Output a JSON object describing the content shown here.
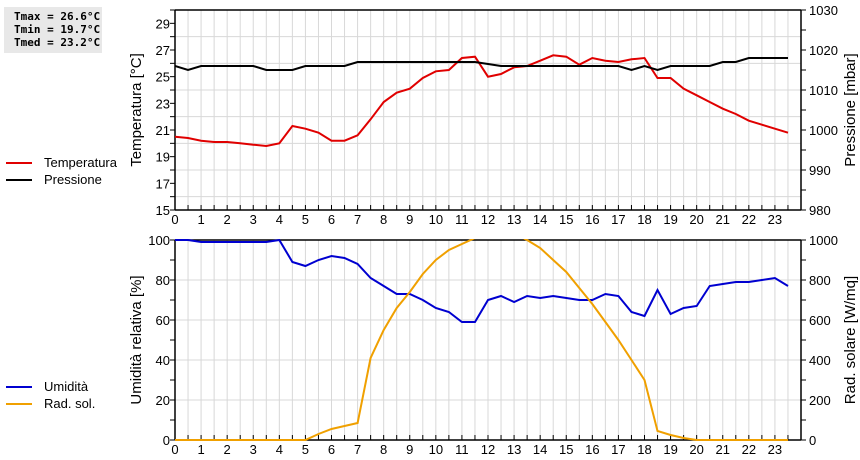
{
  "stats": {
    "tmax": "Tmax = 26.6°C",
    "tmin": "Tmin = 19.7°C",
    "tmed": "Tmed = 23.2°C"
  },
  "legend_top": [
    {
      "label": "Temperatura",
      "color": "#e00000"
    },
    {
      "label": "Pressione",
      "color": "#000000"
    }
  ],
  "legend_bottom": [
    {
      "label": "Umidità",
      "color": "#0000d0"
    },
    {
      "label": "Rad. sol.",
      "color": "#f0a000"
    }
  ],
  "chart_data": [
    {
      "type": "line",
      "title": "",
      "xlabel": "",
      "ylabel": "Temperatura [°C]",
      "ylabel_right": "Pressione [mbar]",
      "xlim": [
        0,
        24
      ],
      "ylim": [
        15,
        30
      ],
      "ylim_right": [
        980,
        1030
      ],
      "x_ticks": [
        "0",
        "1",
        "2",
        "3",
        "4",
        "5",
        "6",
        "7",
        "8",
        "9",
        "10",
        "11",
        "12",
        "13",
        "14",
        "15",
        "16",
        "17",
        "18",
        "19",
        "20",
        "21",
        "22",
        "23"
      ],
      "y_ticks": [
        "15",
        "17",
        "19",
        "21",
        "23",
        "25",
        "27",
        "29"
      ],
      "y_ticks_right": [
        "980",
        "990",
        "1000",
        "1010",
        "1020",
        "1030"
      ],
      "grid": true,
      "legend_position": "left",
      "x": [
        0,
        0.5,
        1,
        1.5,
        2,
        2.5,
        3,
        3.5,
        4,
        4.5,
        5,
        5.5,
        6,
        6.5,
        7,
        7.5,
        8,
        8.5,
        9,
        9.5,
        10,
        10.5,
        11,
        11.5,
        12,
        12.5,
        13,
        13.5,
        14,
        14.5,
        15,
        15.5,
        16,
        16.5,
        17,
        17.5,
        18,
        18.5,
        19,
        19.5,
        20,
        20.5,
        21,
        21.5,
        22,
        22.5,
        23,
        23.5
      ],
      "series": [
        {
          "name": "Temperatura",
          "axis": "left",
          "color": "#e00000",
          "values": [
            20.5,
            20.4,
            20.2,
            20.1,
            20.1,
            20.0,
            19.9,
            19.8,
            20.0,
            21.3,
            21.1,
            20.8,
            20.2,
            20.2,
            20.6,
            21.8,
            23.1,
            23.8,
            24.1,
            24.9,
            25.4,
            25.5,
            26.4,
            26.5,
            25.0,
            25.2,
            25.7,
            25.8,
            26.2,
            26.6,
            26.5,
            25.9,
            26.4,
            26.2,
            26.1,
            26.3,
            26.4,
            24.9,
            24.9,
            24.1,
            23.6,
            23.1,
            22.6,
            22.2,
            21.7,
            21.4,
            21.1,
            20.8
          ]
        },
        {
          "name": "Pressione",
          "axis": "right",
          "color": "#000000",
          "values": [
            1016,
            1015,
            1016,
            1016,
            1016,
            1016,
            1016,
            1015,
            1015,
            1015,
            1016,
            1016,
            1016,
            1016,
            1017,
            1017,
            1017,
            1017,
            1017,
            1017,
            1017,
            1017,
            1017,
            1017,
            1016.5,
            1016,
            1016,
            1016,
            1016,
            1016,
            1016,
            1016,
            1016,
            1016,
            1016,
            1015,
            1016,
            1015,
            1016,
            1016,
            1016,
            1016,
            1017,
            1017,
            1018,
            1018,
            1018,
            1018
          ]
        }
      ]
    },
    {
      "type": "line",
      "title": "",
      "xlabel": "",
      "ylabel": "Umidità relativa [%]",
      "ylabel_right": "Rad. solare [W/mq]",
      "xlim": [
        0,
        24
      ],
      "ylim": [
        0,
        100
      ],
      "ylim_right": [
        0,
        1000
      ],
      "x_ticks": [
        "0",
        "1",
        "2",
        "3",
        "4",
        "5",
        "6",
        "7",
        "8",
        "9",
        "10",
        "11",
        "12",
        "13",
        "14",
        "15",
        "16",
        "17",
        "18",
        "19",
        "20",
        "21",
        "22",
        "23"
      ],
      "y_ticks": [
        "0",
        "20",
        "40",
        "60",
        "80",
        "100"
      ],
      "y_ticks_right": [
        "0",
        "200",
        "400",
        "600",
        "800",
        "1000"
      ],
      "grid": true,
      "legend_position": "left",
      "x": [
        0,
        0.5,
        1,
        1.5,
        2,
        2.5,
        3,
        3.5,
        4,
        4.5,
        5,
        5.5,
        6,
        6.5,
        7,
        7.5,
        8,
        8.5,
        9,
        9.5,
        10,
        10.5,
        11,
        11.5,
        12,
        12.5,
        13,
        13.5,
        14,
        14.5,
        15,
        15.5,
        16,
        16.5,
        17,
        17.5,
        18,
        18.5,
        19,
        19.5,
        20,
        20.5,
        21,
        21.5,
        22,
        22.5,
        23,
        23.5
      ],
      "series": [
        {
          "name": "Umidità",
          "axis": "left",
          "color": "#0000d0",
          "values": [
            100,
            100,
            99,
            99,
            99,
            99,
            99,
            99,
            100,
            89,
            87,
            90,
            92,
            91,
            88,
            81,
            77,
            73,
            73,
            70,
            66,
            64,
            59,
            59,
            70,
            72,
            69,
            72,
            71,
            72,
            71,
            70,
            70,
            73,
            72,
            64,
            62,
            75,
            63,
            66,
            67,
            77,
            78,
            79,
            79,
            80,
            81,
            77
          ]
        },
        {
          "name": "Rad. sol.",
          "axis": "right",
          "color": "#f0a000",
          "values": [
            0,
            0,
            0,
            0,
            0,
            0,
            0,
            0,
            0,
            0,
            0,
            30,
            55,
            70,
            85,
            410,
            550,
            660,
            740,
            830,
            900,
            950,
            980,
            1010,
            1030,
            1040,
            1030,
            1000,
            960,
            900,
            840,
            760,
            680,
            590,
            500,
            400,
            300,
            45,
            25,
            10,
            0,
            0,
            0,
            0,
            0,
            0,
            0,
            0
          ]
        }
      ]
    }
  ]
}
